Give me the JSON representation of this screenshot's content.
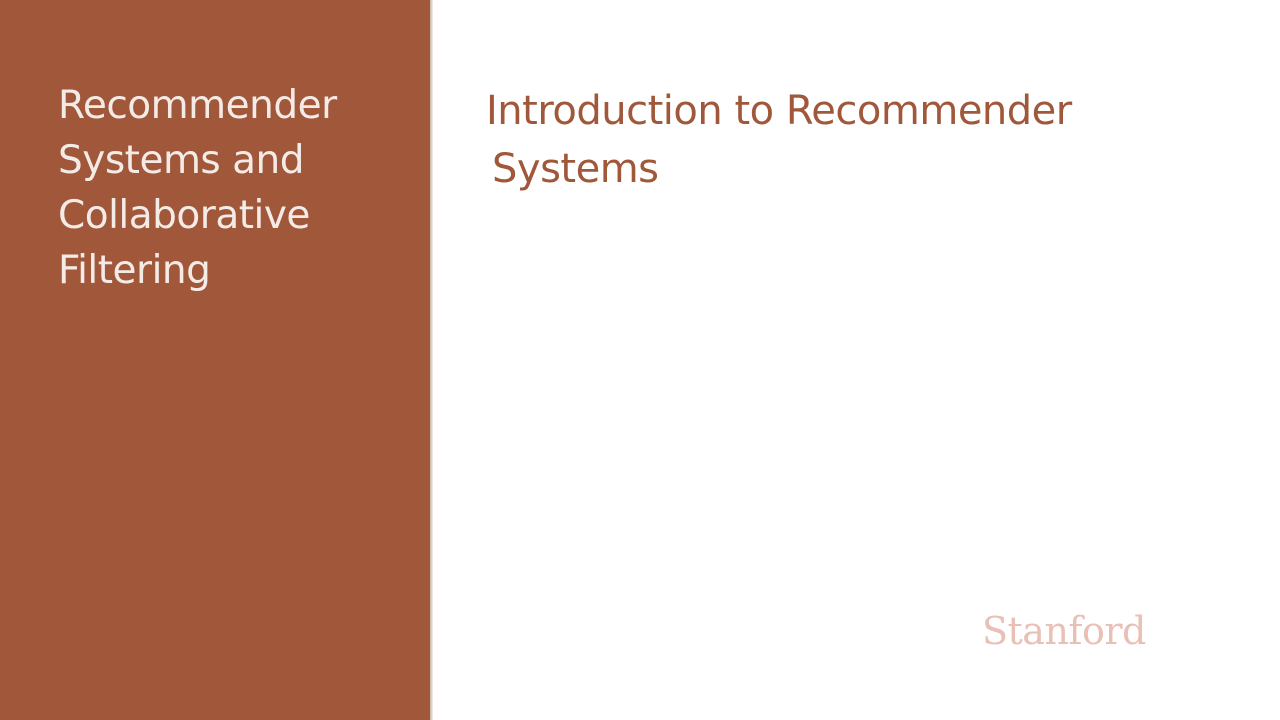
{
  "side_panel": {
    "section_title": "Recommender Systems and Collaborative Filtering",
    "color": "#a0573a"
  },
  "main": {
    "title_line1": "Introduction to Recommender",
    "title_line2": "Systems",
    "title_color": "#a0573a"
  },
  "logo": {
    "text": "Stanford",
    "color": "#e8c0b6"
  }
}
